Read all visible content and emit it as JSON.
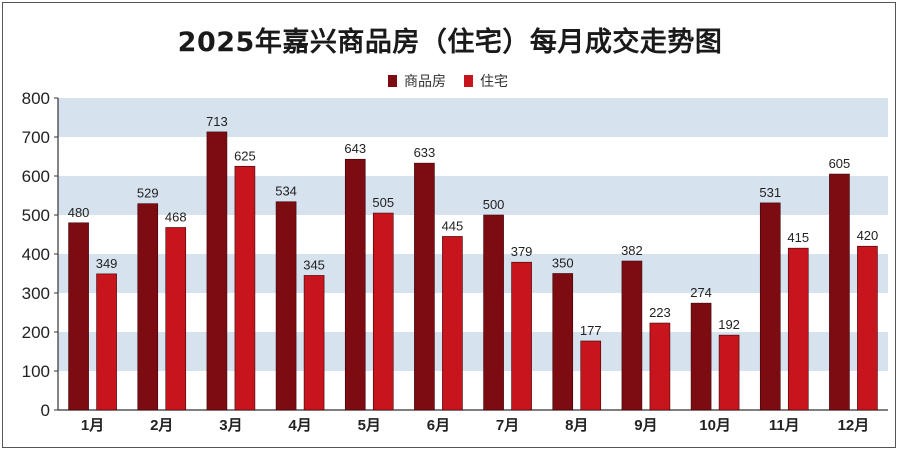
{
  "chart_data": {
    "type": "bar",
    "title": "2025年嘉兴商品房（住宅）每月成交走势图",
    "categories": [
      "1月",
      "2月",
      "3月",
      "4月",
      "5月",
      "6月",
      "7月",
      "8月",
      "9月",
      "10月",
      "11月",
      "12月"
    ],
    "series": [
      {
        "name": "商品房",
        "color": "#7d0c12",
        "values": [
          480,
          529,
          713,
          534,
          643,
          633,
          500,
          350,
          382,
          274,
          531,
          605
        ]
      },
      {
        "name": "住宅",
        "color": "#c8141c",
        "values": [
          349,
          468,
          625,
          345,
          505,
          445,
          379,
          177,
          223,
          192,
          415,
          420
        ]
      }
    ],
    "ylim": [
      0,
      800
    ],
    "yticks": [
      0,
      100,
      200,
      300,
      400,
      500,
      600,
      700,
      800
    ],
    "band_color": "#d6e2ee",
    "legend_position": "top-center",
    "xlabel": "",
    "ylabel": ""
  }
}
